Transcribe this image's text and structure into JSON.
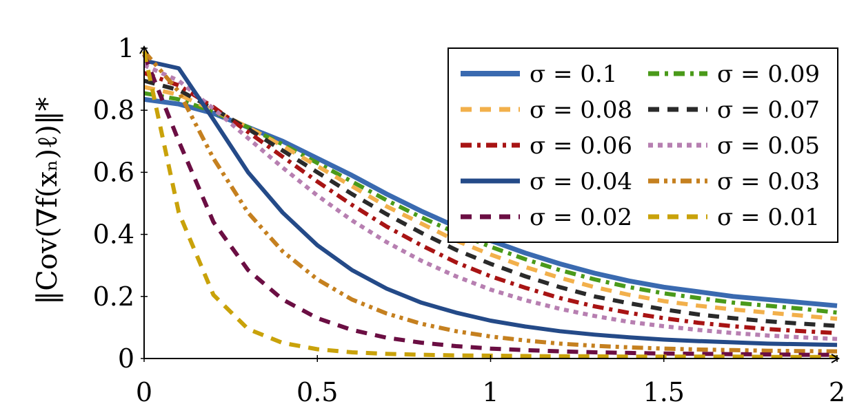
{
  "chart_data": {
    "type": "line",
    "title": "",
    "xlabel": "",
    "ylabel": "‖Cov(∇f(xₙ)ℓ)‖*",
    "xlim": [
      0,
      2
    ],
    "ylim": [
      0,
      1
    ],
    "xticks": [
      0,
      0.5,
      1,
      1.5,
      2
    ],
    "xtick_labels": [
      "0",
      "0.5",
      "1",
      "1.5",
      "2"
    ],
    "yticks": [
      0,
      0.2,
      0.4,
      0.6,
      0.8,
      1
    ],
    "ytick_labels": [
      "0",
      "0.2",
      "0.4",
      "0.6",
      "0.8",
      "1"
    ],
    "grid": false,
    "legend_position": "top-right",
    "legend_columns": 2,
    "x": [
      0,
      0.1,
      0.2,
      0.3,
      0.4,
      0.5,
      0.6,
      0.7,
      0.8,
      0.9,
      1.0,
      1.1,
      1.2,
      1.3,
      1.4,
      1.5,
      1.6,
      1.7,
      1.8,
      1.9,
      2.0
    ],
    "series": [
      {
        "name": "σ = 0.1",
        "color": "#3a6ab0",
        "dash": "solid",
        "width": 7,
        "values": [
          0.835,
          0.82,
          0.79,
          0.745,
          0.7,
          0.645,
          0.59,
          0.53,
          0.475,
          0.425,
          0.38,
          0.34,
          0.305,
          0.275,
          0.25,
          0.23,
          0.215,
          0.2,
          0.19,
          0.18,
          0.17
        ]
      },
      {
        "name": "σ = 0.09",
        "color": "#4a9a1a",
        "dash": "dashdot",
        "width": 6,
        "values": [
          0.855,
          0.835,
          0.795,
          0.745,
          0.69,
          0.63,
          0.57,
          0.51,
          0.455,
          0.405,
          0.36,
          0.32,
          0.285,
          0.255,
          0.23,
          0.21,
          0.195,
          0.18,
          0.17,
          0.16,
          0.148
        ]
      },
      {
        "name": "σ = 0.08",
        "color": "#f2b04b",
        "dash": "dashed",
        "width": 6,
        "values": [
          0.875,
          0.85,
          0.8,
          0.745,
          0.685,
          0.62,
          0.555,
          0.49,
          0.435,
          0.38,
          0.335,
          0.295,
          0.26,
          0.23,
          0.205,
          0.185,
          0.17,
          0.158,
          0.148,
          0.138,
          0.128
        ]
      },
      {
        "name": "σ = 0.07",
        "color": "#2a2a2a",
        "dash": "dashed",
        "width": 6,
        "values": [
          0.895,
          0.865,
          0.805,
          0.74,
          0.67,
          0.6,
          0.53,
          0.465,
          0.405,
          0.35,
          0.305,
          0.265,
          0.23,
          0.2,
          0.178,
          0.158,
          0.142,
          0.13,
          0.12,
          0.112,
          0.105
        ]
      },
      {
        "name": "σ = 0.06",
        "color": "#a81414",
        "dash": "dashdot",
        "width": 6,
        "values": [
          0.92,
          0.88,
          0.81,
          0.73,
          0.65,
          0.57,
          0.495,
          0.425,
          0.365,
          0.31,
          0.265,
          0.228,
          0.195,
          0.168,
          0.147,
          0.13,
          0.115,
          0.104,
          0.095,
          0.088,
          0.082
        ]
      },
      {
        "name": "σ = 0.05",
        "color": "#b77fb1",
        "dash": "dotted",
        "width": 6,
        "values": [
          0.945,
          0.895,
          0.805,
          0.71,
          0.615,
          0.525,
          0.445,
          0.375,
          0.315,
          0.265,
          0.222,
          0.188,
          0.16,
          0.137,
          0.118,
          0.104,
          0.092,
          0.082,
          0.074,
          0.068,
          0.063
        ]
      },
      {
        "name": "σ = 0.04",
        "color": "#244a88",
        "dash": "solid",
        "width": 6,
        "values": [
          0.96,
          0.935,
          0.77,
          0.6,
          0.47,
          0.365,
          0.285,
          0.225,
          0.18,
          0.148,
          0.122,
          0.103,
          0.088,
          0.077,
          0.068,
          0.061,
          0.056,
          0.052,
          0.048,
          0.046,
          0.044
        ]
      },
      {
        "name": "σ = 0.03",
        "color": "#c5801f",
        "dash": "dashdotdot",
        "width": 6,
        "values": [
          0.99,
          0.86,
          0.645,
          0.47,
          0.345,
          0.255,
          0.19,
          0.145,
          0.112,
          0.088,
          0.071,
          0.058,
          0.048,
          0.041,
          0.036,
          0.032,
          0.029,
          0.027,
          0.025,
          0.024,
          0.023
        ]
      },
      {
        "name": "σ = 0.02",
        "color": "#6b0e43",
        "dash": "dashed",
        "width": 6,
        "values": [
          0.98,
          0.7,
          0.44,
          0.285,
          0.19,
          0.13,
          0.092,
          0.067,
          0.051,
          0.04,
          0.032,
          0.027,
          0.023,
          0.02,
          0.018,
          0.016,
          0.015,
          0.014,
          0.013,
          0.012,
          0.012
        ]
      },
      {
        "name": "σ = 0.01",
        "color": "#c9a20a",
        "dash": "dashed",
        "width": 6,
        "values": [
          0.99,
          0.47,
          0.205,
          0.095,
          0.05,
          0.03,
          0.02,
          0.015,
          0.012,
          0.01,
          0.009,
          0.008,
          0.007,
          0.007,
          0.006,
          0.006,
          0.006,
          0.006,
          0.005,
          0.005,
          0.005
        ]
      }
    ],
    "legend_order": [
      0,
      1,
      2,
      3,
      4,
      5,
      6,
      7,
      8,
      9
    ]
  }
}
